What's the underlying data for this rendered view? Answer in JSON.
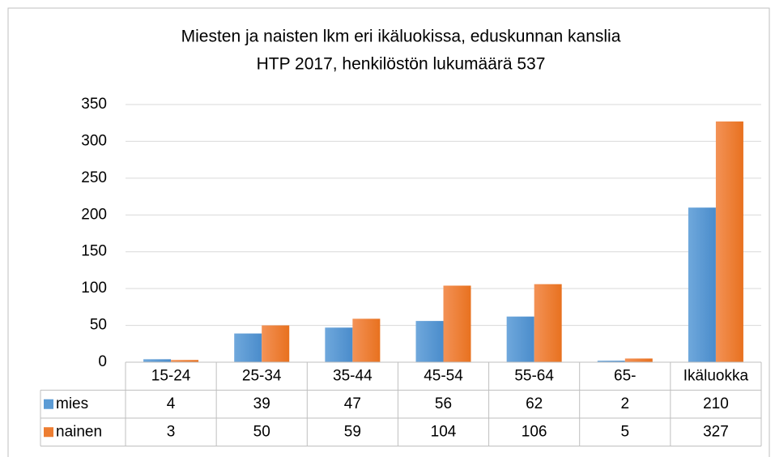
{
  "chart_data": {
    "type": "bar",
    "title": [
      "Miesten ja naisten lkm eri ikäluokissa, eduskunnan kanslia",
      "HTP 2017, henkilöstön lukumäärä 537"
    ],
    "categories": [
      "15-24",
      "25-34",
      "35-44",
      "45-54",
      "55-64",
      "65-",
      "Ikäluokka"
    ],
    "series": [
      {
        "name": "mies",
        "color": "#5b9bd5",
        "values": [
          4,
          39,
          47,
          56,
          62,
          2,
          210
        ]
      },
      {
        "name": "nainen",
        "color": "#ed7d31",
        "values": [
          3,
          50,
          59,
          104,
          106,
          5,
          327
        ]
      }
    ],
    "ylim": [
      0,
      350
    ],
    "yticks": [
      0,
      50,
      100,
      150,
      200,
      250,
      300,
      350
    ],
    "grid": true,
    "data_table": true
  }
}
